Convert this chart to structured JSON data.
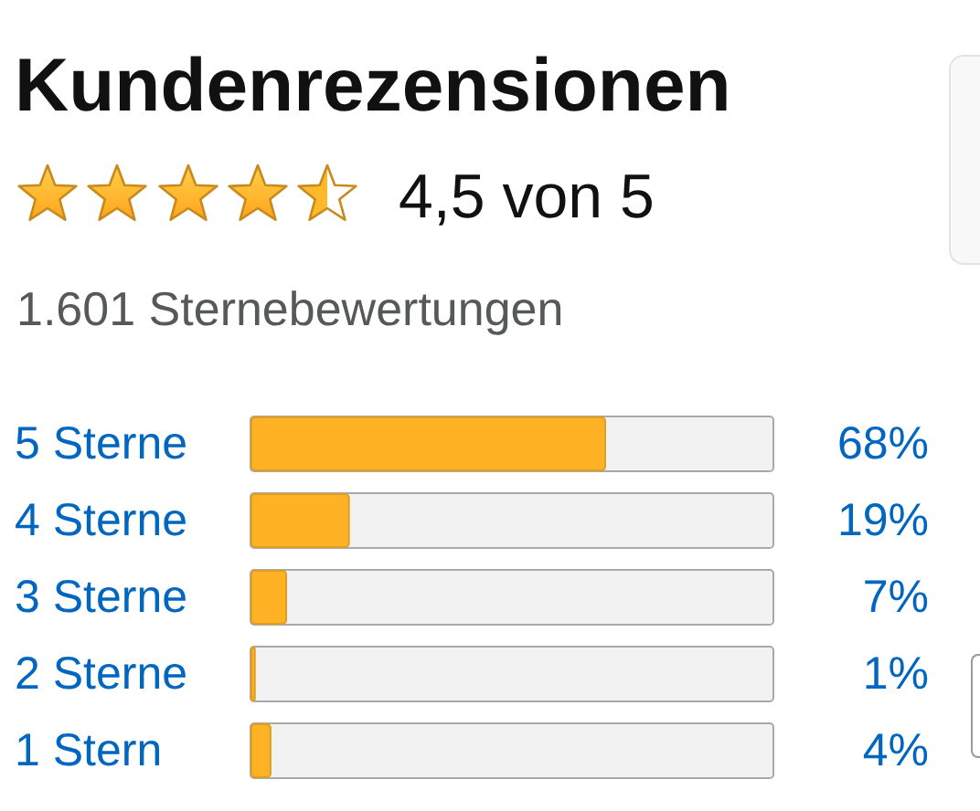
{
  "chart_data": {
    "type": "bar",
    "orientation": "horizontal",
    "title": "Kundenrezensionen",
    "annotations": [
      "4,5 von 5",
      "1.601 Sternebewertungen"
    ],
    "categories": [
      "5 Sterne",
      "4 Sterne",
      "3 Sterne",
      "2 Sterne",
      "1 Stern"
    ],
    "values": [
      68,
      19,
      7,
      1,
      4
    ],
    "value_labels": [
      "68%",
      "19%",
      "7%",
      "1%",
      "4%"
    ],
    "color": "#ffb224",
    "xlim": [
      0,
      100
    ],
    "tick_labels": "y"
  }
}
